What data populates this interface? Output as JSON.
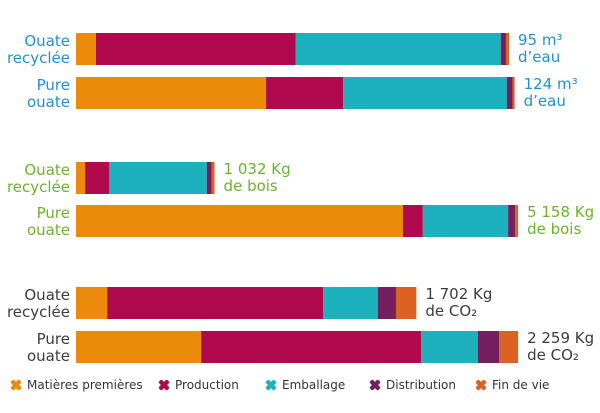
{
  "legend": [
    {
      "label": "Matières premières",
      "color": "#ec8a0b",
      "icon": "cross-icon"
    },
    {
      "label": "Production",
      "color": "#b0094d",
      "icon": "cross-icon"
    },
    {
      "label": "Emballage",
      "color": "#1cb1bc",
      "icon": "cross-icon"
    },
    {
      "label": "Distribution",
      "color": "#742060",
      "icon": "cross-icon"
    },
    {
      "label": "Fin de vie",
      "color": "#dc6224",
      "icon": "cross-icon"
    }
  ],
  "chart_data": [
    {
      "type": "bar",
      "orientation": "horizontal",
      "stacked": true,
      "unit": "%",
      "label_color": "#1f8fd6",
      "series": [
        "Matières premières",
        "Production",
        "Emballage",
        "Distribution",
        "Fin de vie"
      ],
      "rows": [
        {
          "category": [
            "Ouate",
            "recyclée"
          ],
          "values": [
            4.6,
            46.1,
            47.4,
            1.2,
            0.7
          ],
          "total": [
            "95 m³",
            "d’eau"
          ]
        },
        {
          "category": [
            "Pure",
            "ouate"
          ],
          "values": [
            43.9,
            17.8,
            37.8,
            1.3,
            0.5
          ],
          "total": [
            "124 m³",
            "d’eau"
          ]
        }
      ]
    },
    {
      "type": "bar",
      "orientation": "horizontal",
      "stacked": true,
      "unit": "%",
      "label_color": "#6bb32b",
      "series": [
        "Matières premières",
        "Production",
        "Emballage",
        "Distribution",
        "Fin de vie"
      ],
      "rows": [
        {
          "category": [
            "Ouate",
            "recyclée"
          ],
          "values": [
            2.1,
            5.6,
            22.5,
            1.1,
            0.7
          ],
          "total": [
            "1 032 Kg",
            "de bois"
          ]
        },
        {
          "category": [
            "Pure",
            "ouate"
          ],
          "values": [
            75.5,
            4.6,
            19.7,
            1.6,
            0.7
          ],
          "total": [
            "5 158 Kg",
            "de bois"
          ]
        }
      ]
    },
    {
      "type": "bar",
      "orientation": "horizontal",
      "stacked": true,
      "unit": "%",
      "label_color": "#3c3c3c",
      "series": [
        "Matières premières",
        "Production",
        "Emballage",
        "Distribution",
        "Fin de vie"
      ],
      "rows": [
        {
          "category": [
            "Ouate",
            "recyclée"
          ],
          "values": [
            7.2,
            49.9,
            12.6,
            4.2,
            4.7
          ],
          "total": [
            "1 702 Kg",
            "de CO₂"
          ]
        },
        {
          "category": [
            "Pure",
            "ouate"
          ],
          "values": [
            28.9,
            50.8,
            13.1,
            4.9,
            4.4
          ],
          "total": [
            "2 259 Kg",
            "de CO₂"
          ]
        }
      ]
    }
  ]
}
